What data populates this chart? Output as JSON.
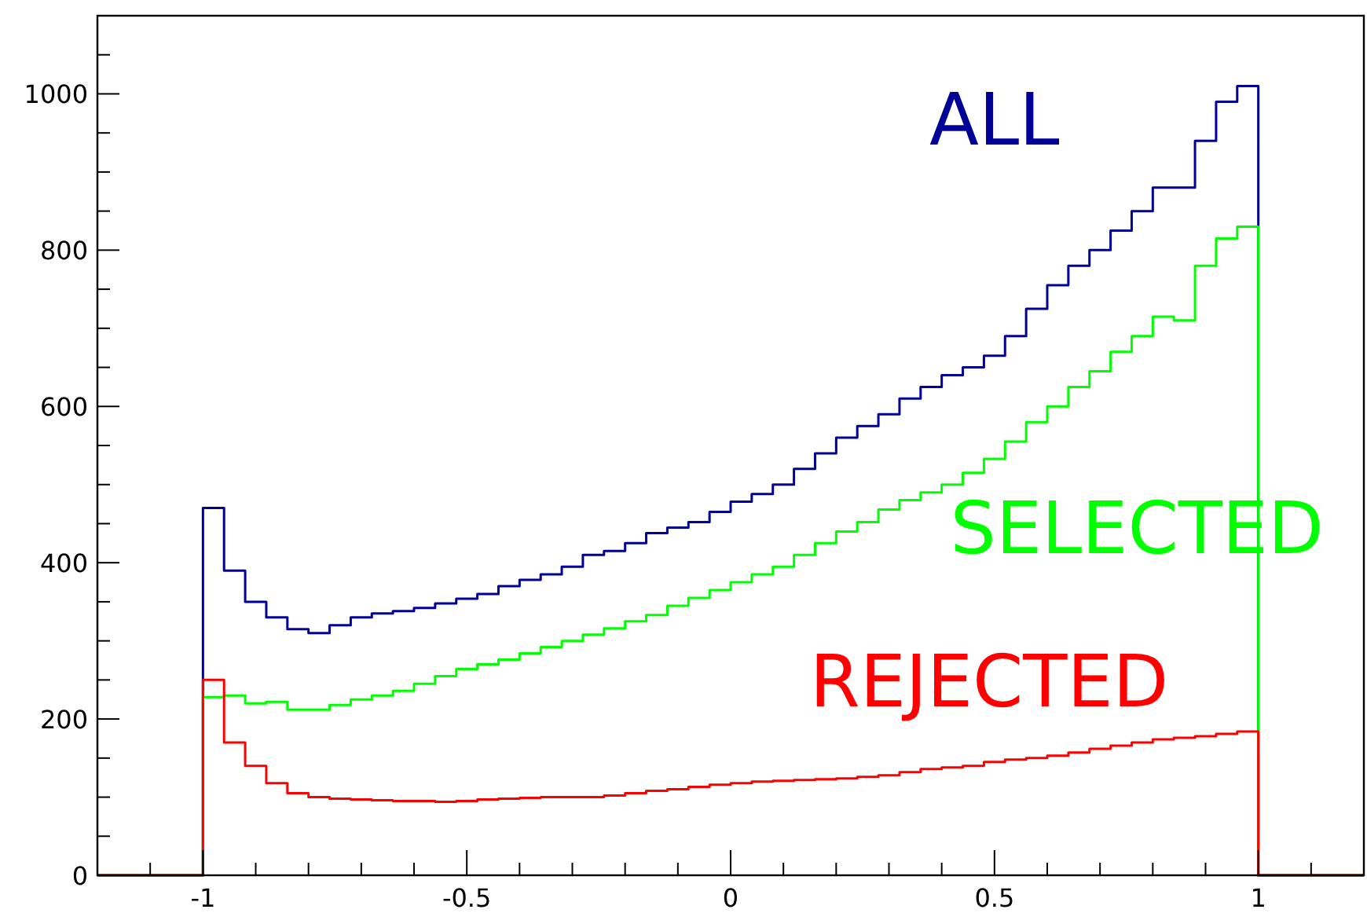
{
  "chart_data": {
    "type": "histogram",
    "bins": [
      -1.2,
      -1,
      -0.96,
      -0.92,
      -0.88,
      -0.84,
      -0.8,
      -0.76,
      -0.72,
      -0.68,
      -0.64,
      -0.6,
      -0.56,
      -0.52,
      -0.48,
      -0.44,
      -0.4,
      -0.36,
      -0.32,
      -0.28,
      -0.24,
      -0.2,
      -0.16,
      -0.12,
      -0.08,
      -0.04,
      0,
      0.04,
      0.08,
      0.12,
      0.16,
      0.2,
      0.24,
      0.28,
      0.32,
      0.36,
      0.4,
      0.44,
      0.48,
      0.52,
      0.56,
      0.6,
      0.64,
      0.68,
      0.72,
      0.76,
      0.8,
      0.84,
      0.88,
      0.92,
      0.96,
      1,
      1.2
    ],
    "series": [
      {
        "name": "ALL",
        "color": "#000099",
        "values": [
          0,
          470,
          390,
          350,
          330,
          315,
          310,
          320,
          330,
          335,
          338,
          342,
          348,
          354,
          360,
          370,
          378,
          385,
          395,
          410,
          415,
          425,
          438,
          445,
          452,
          465,
          478,
          488,
          500,
          520,
          540,
          560,
          575,
          590,
          610,
          625,
          640,
          650,
          665,
          690,
          725,
          755,
          780,
          800,
          825,
          850,
          880,
          880,
          940,
          990,
          1010,
          0
        ]
      },
      {
        "name": "SELECTED",
        "color": "#00ff00",
        "values": [
          0,
          228,
          230,
          220,
          222,
          212,
          212,
          218,
          225,
          230,
          236,
          245,
          255,
          264,
          270,
          276,
          284,
          292,
          300,
          308,
          316,
          325,
          333,
          345,
          355,
          365,
          375,
          385,
          395,
          410,
          425,
          440,
          452,
          468,
          480,
          490,
          500,
          515,
          533,
          555,
          580,
          600,
          625,
          645,
          670,
          690,
          715,
          710,
          780,
          815,
          830,
          0
        ]
      },
      {
        "name": "REJECTED",
        "color": "#ff0000",
        "values": [
          0,
          250,
          170,
          140,
          118,
          105,
          100,
          98,
          97,
          96,
          95,
          95,
          94,
          95,
          97,
          98,
          99,
          100,
          100,
          100,
          102,
          105,
          108,
          110,
          113,
          116,
          118,
          120,
          121,
          122,
          123,
          124,
          126,
          128,
          132,
          136,
          138,
          140,
          145,
          148,
          150,
          153,
          157,
          162,
          166,
          170,
          174,
          176,
          178,
          181,
          184,
          0
        ]
      }
    ],
    "xlim": [
      -1.2,
      1.2
    ],
    "xticks": [
      {
        "value": -1.1,
        "label": null
      },
      -1,
      {
        "value": -0.9,
        "label": null
      },
      {
        "value": -0.8,
        "label": null
      },
      {
        "value": -0.7,
        "label": null
      },
      {
        "value": -0.6,
        "label": null
      },
      -0.5,
      {
        "value": -0.4,
        "label": null
      },
      {
        "value": -0.3,
        "label": null
      },
      {
        "value": -0.2,
        "label": null
      },
      {
        "value": -0.1,
        "label": null
      },
      0,
      {
        "value": 0.1,
        "label": null
      },
      {
        "value": 0.2,
        "label": null
      },
      {
        "value": 0.3,
        "label": null
      },
      {
        "value": 0.4,
        "label": null
      },
      0.5,
      {
        "value": 0.6,
        "label": null
      },
      {
        "value": 0.7,
        "label": null
      },
      {
        "value": 0.8,
        "label": null
      },
      {
        "value": 0.9,
        "label": null
      },
      1,
      {
        "value": 1.1,
        "label": null
      }
    ],
    "ylim": [
      0,
      1100
    ],
    "yticks": [
      0,
      {
        "value": 50,
        "label": null
      },
      {
        "value": 100,
        "label": null
      },
      {
        "value": 150,
        "label": null
      },
      200,
      {
        "value": 250,
        "label": null
      },
      {
        "value": 300,
        "label": null
      },
      {
        "value": 350,
        "label": null
      },
      400,
      {
        "value": 450,
        "label": null
      },
      {
        "value": 500,
        "label": null
      },
      {
        "value": 550,
        "label": null
      },
      600,
      {
        "value": 650,
        "label": null
      },
      {
        "value": 700,
        "label": null
      },
      {
        "value": 750,
        "label": null
      },
      800,
      {
        "value": 850,
        "label": null
      },
      {
        "value": 900,
        "label": null
      },
      {
        "value": 950,
        "label": null
      },
      1000,
      {
        "value": 1050,
        "label": null
      }
    ],
    "grid": false,
    "legend": false
  }
}
